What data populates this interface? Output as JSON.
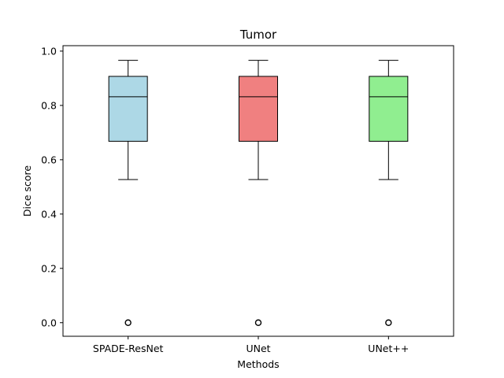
{
  "chart_data": {
    "type": "box",
    "title": "Tumor",
    "xlabel": "Methods",
    "ylabel": "Dice score",
    "ylim": [
      -0.05,
      1.02
    ],
    "yticks": [
      0.0,
      0.2,
      0.4,
      0.6,
      0.8,
      1.0
    ],
    "ytick_labels": [
      "0.0",
      "0.2",
      "0.4",
      "0.6",
      "0.8",
      "1.0"
    ],
    "grid": false,
    "categories": [
      "SPADE-ResNet",
      "UNet",
      "UNet++"
    ],
    "boxes": [
      {
        "name": "SPADE-ResNet",
        "whisker_low": 0.527,
        "q1": 0.668,
        "median": 0.832,
        "q3": 0.907,
        "whisker_high": 0.966,
        "outliers": [
          0.0
        ],
        "color": "#add8e6"
      },
      {
        "name": "UNet",
        "whisker_low": 0.527,
        "q1": 0.668,
        "median": 0.832,
        "q3": 0.907,
        "whisker_high": 0.966,
        "outliers": [
          0.0
        ],
        "color": "#f08080"
      },
      {
        "name": "UNet++",
        "whisker_low": 0.527,
        "q1": 0.668,
        "median": 0.832,
        "q3": 0.907,
        "whisker_high": 0.966,
        "outliers": [
          0.0
        ],
        "color": "#90ee90"
      }
    ]
  }
}
